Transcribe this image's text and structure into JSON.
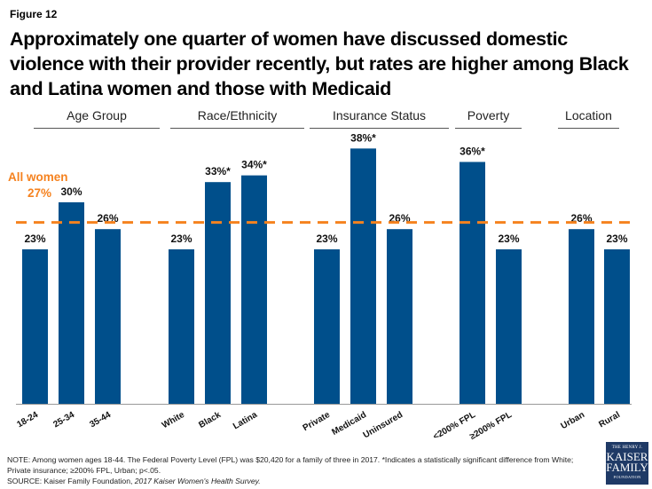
{
  "figure_label": "Figure 12",
  "title": "Approximately one quarter of women have discussed domestic violence with their provider recently, but rates are higher among Black and Latina women and those with Medicaid",
  "chart_data": {
    "type": "bar",
    "title": "Approximately one quarter of women have discussed domestic violence with their provider recently, but rates are higher among Black and Latina women and those with Medicaid",
    "xlabel": "",
    "ylabel": "",
    "ylim": [
      0,
      40
    ],
    "grid": false,
    "bar_color": "#004f8b",
    "reference_line": {
      "label": "All women",
      "value_label": "27%",
      "value": 27,
      "color": "#f5821f",
      "style": "dashed"
    },
    "groups": [
      {
        "name": "Age Group",
        "categories": [
          "18-24",
          "25-34",
          "35-44"
        ],
        "values": [
          23,
          30,
          26
        ],
        "labels": [
          "23%",
          "30%",
          "26%"
        ]
      },
      {
        "name": "Race/Ethnicity",
        "categories": [
          "White",
          "Black",
          "Latina"
        ],
        "values": [
          23,
          33,
          34
        ],
        "labels": [
          "23%",
          "33%*",
          "34%*"
        ]
      },
      {
        "name": "Insurance Status",
        "categories": [
          "Private",
          "Medicaid",
          "Uninsured"
        ],
        "values": [
          23,
          38,
          26
        ],
        "labels": [
          "23%",
          "38%*",
          "26%"
        ]
      },
      {
        "name": "Poverty",
        "categories": [
          "<200% FPL",
          "≥200% FPL"
        ],
        "values": [
          36,
          23
        ],
        "labels": [
          "36%*",
          "23%"
        ]
      },
      {
        "name": "Location",
        "categories": [
          "Urban",
          "Rural"
        ],
        "values": [
          26,
          23
        ],
        "labels": [
          "26%",
          "23%"
        ]
      }
    ]
  },
  "note": "NOTE: Among women ages 18-44. The Federal Poverty Level (FPL) was $20,420 for a family of three in 2017. *Indicates a statistically significant difference from White; Private insurance; ≥200% FPL, Urban; p<.05.",
  "source_prefix": "SOURCE: Kaiser Family Foundation, ",
  "source_title": "2017 Kaiser Women's Health Survey.",
  "logo": {
    "line1": "THE HENRY J.",
    "line2": "KAISER",
    "line3": "FAMILY",
    "line4": "FOUNDATION"
  }
}
